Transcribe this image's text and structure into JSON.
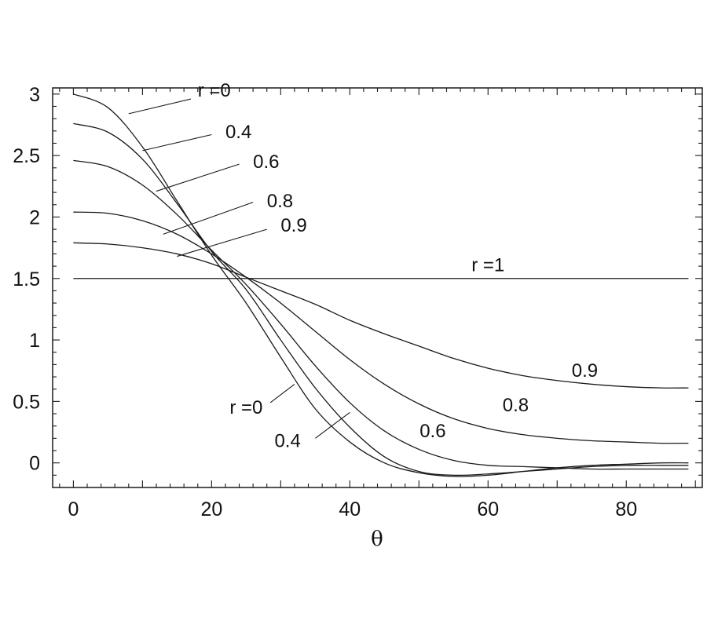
{
  "chart_data": {
    "type": "line",
    "xlabel": "θ",
    "ylabel": "",
    "xlim": [
      -3,
      91
    ],
    "ylim": [
      -0.2,
      3.05
    ],
    "x_ticks": [
      0,
      20,
      40,
      60,
      80
    ],
    "y_ticks": [
      0,
      0.5,
      1,
      1.5,
      2,
      2.5,
      3
    ],
    "x_tick_labels": [
      "0",
      "20",
      "40",
      "60",
      "80"
    ],
    "y_tick_labels": [
      "0",
      "0.5",
      "1",
      "1.5",
      "2",
      "2.5",
      "3"
    ],
    "grid": false,
    "x": [
      0,
      5,
      10,
      15,
      20,
      25,
      30,
      35,
      40,
      45,
      50,
      55,
      60,
      65,
      70,
      75,
      80,
      85,
      89
    ],
    "series": [
      {
        "name": "r =0",
        "values": [
          3.0,
          2.89,
          2.57,
          2.13,
          1.69,
          1.3,
          0.86,
          0.44,
          0.17,
          0.0,
          -0.08,
          -0.11,
          -0.1,
          -0.07,
          -0.04,
          -0.02,
          -0.01,
          0.0,
          0.0
        ]
      },
      {
        "name": "0.4",
        "values": [
          2.76,
          2.69,
          2.47,
          2.11,
          1.72,
          1.41,
          1.0,
          0.61,
          0.29,
          0.05,
          -0.07,
          -0.1,
          -0.09,
          -0.07,
          -0.05,
          -0.03,
          -0.02,
          -0.02,
          -0.02
        ]
      },
      {
        "name": "0.6",
        "values": [
          2.46,
          2.41,
          2.26,
          2.02,
          1.73,
          1.45,
          1.13,
          0.79,
          0.49,
          0.26,
          0.11,
          0.02,
          -0.02,
          -0.03,
          -0.04,
          -0.05,
          -0.05,
          -0.05,
          -0.05
        ]
      },
      {
        "name": "0.8",
        "values": [
          2.04,
          2.03,
          1.97,
          1.86,
          1.7,
          1.51,
          1.3,
          1.07,
          0.84,
          0.64,
          0.48,
          0.36,
          0.28,
          0.23,
          0.2,
          0.18,
          0.17,
          0.16,
          0.16
        ]
      },
      {
        "name": "0.9",
        "values": [
          1.79,
          1.78,
          1.75,
          1.7,
          1.62,
          1.51,
          1.4,
          1.29,
          1.16,
          1.05,
          0.95,
          0.85,
          0.77,
          0.71,
          0.67,
          0.64,
          0.62,
          0.61,
          0.61
        ]
      },
      {
        "name": "r =1",
        "values": [
          1.5,
          1.5,
          1.5,
          1.5,
          1.5,
          1.5,
          1.5,
          1.5,
          1.5,
          1.5,
          1.5,
          1.5,
          1.5,
          1.5,
          1.5,
          1.5,
          1.5,
          1.5,
          1.5
        ]
      }
    ],
    "annotations": [
      {
        "text": "r =0",
        "at": [
          18,
          2.98
        ],
        "anchor": "start",
        "leader_from": [
          8,
          2.84
        ],
        "leader_to": [
          17,
          2.96
        ]
      },
      {
        "text": "0.4",
        "at": [
          22,
          2.64
        ],
        "anchor": "start",
        "leader_from": [
          10,
          2.54
        ],
        "leader_to": [
          20,
          2.67
        ]
      },
      {
        "text": "0.6",
        "at": [
          26,
          2.4
        ],
        "anchor": "start",
        "leader_from": [
          12,
          2.21
        ],
        "leader_to": [
          24,
          2.43
        ]
      },
      {
        "text": "0.8",
        "at": [
          28,
          2.08
        ],
        "anchor": "start",
        "leader_from": [
          13,
          1.86
        ],
        "leader_to": [
          26,
          2.12
        ]
      },
      {
        "text": "0.9",
        "at": [
          30,
          1.88
        ],
        "anchor": "start",
        "leader_from": [
          15,
          1.68
        ],
        "leader_to": [
          28,
          1.9
        ]
      },
      {
        "text": "r =1",
        "at": [
          60,
          1.56
        ],
        "anchor": "middle"
      },
      {
        "text": "r =0",
        "at": [
          25,
          0.4
        ],
        "anchor": "middle",
        "leader_from": [
          28.5,
          0.49
        ],
        "leader_to": [
          32,
          0.64
        ]
      },
      {
        "text": "0.4",
        "at": [
          31,
          0.13
        ],
        "anchor": "middle",
        "leader_from": [
          35,
          0.2
        ],
        "leader_to": [
          40,
          0.41
        ]
      },
      {
        "text": "0.6",
        "at": [
          52,
          0.21
        ],
        "anchor": "middle"
      },
      {
        "text": "0.8",
        "at": [
          64,
          0.42
        ],
        "anchor": "middle"
      },
      {
        "text": "0.9",
        "at": [
          74,
          0.7
        ],
        "anchor": "middle"
      }
    ]
  }
}
